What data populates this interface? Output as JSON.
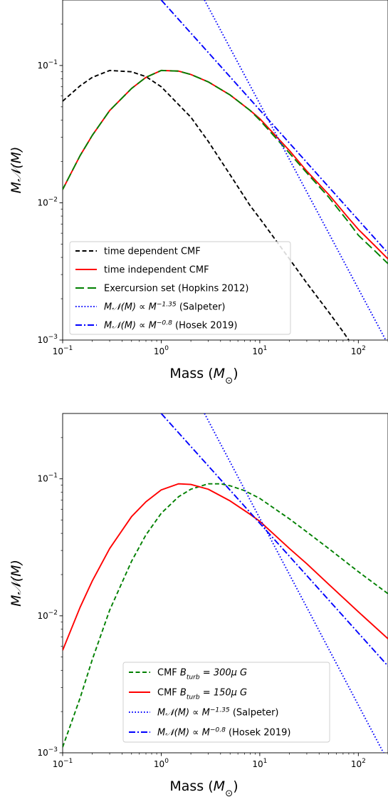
{
  "chart_data": [
    {
      "type": "line",
      "xlabel": "Mass ($M_\\odot$)",
      "ylabel": "$M\\mathcal{N}(M)$",
      "x_scale": "log",
      "y_scale": "log",
      "xlim": [
        0.1,
        200
      ],
      "ylim": [
        0.001,
        0.3
      ],
      "x_ticks": [
        {
          "value": 0.1,
          "mant": "10",
          "exp": "−1"
        },
        {
          "value": 1,
          "mant": "10",
          "exp": "0"
        },
        {
          "value": 10,
          "mant": "10",
          "exp": "1"
        },
        {
          "value": 100,
          "mant": "10",
          "exp": "2"
        }
      ],
      "y_ticks": [
        {
          "value": 0.001,
          "mant": "10",
          "exp": "−3"
        },
        {
          "value": 0.01,
          "mant": "10",
          "exp": "−2"
        },
        {
          "value": 0.1,
          "mant": "10",
          "exp": "−1"
        }
      ],
      "legend_position": "lower-left",
      "series": [
        {
          "name": "time dependent CMF",
          "style": "dashed",
          "color": "#000000",
          "x": [
            0.1,
            0.15,
            0.2,
            0.3,
            0.5,
            0.7,
            1,
            2,
            3,
            5,
            8,
            10,
            20,
            30,
            50,
            70,
            80
          ],
          "y": [
            0.055,
            0.071,
            0.082,
            0.092,
            0.09,
            0.083,
            0.07,
            0.042,
            0.028,
            0.016,
            0.0095,
            0.0077,
            0.0039,
            0.0026,
            0.0016,
            0.00115,
            0.001
          ]
        },
        {
          "name": "time independent CMF",
          "style": "solid",
          "color": "#ff0000",
          "x": [
            0.1,
            0.15,
            0.2,
            0.3,
            0.5,
            0.7,
            1,
            1.5,
            2,
            3,
            5,
            8,
            10,
            20,
            30,
            50,
            80,
            100,
            150,
            200
          ],
          "y": [
            0.0125,
            0.022,
            0.031,
            0.047,
            0.068,
            0.082,
            0.092,
            0.091,
            0.086,
            0.076,
            0.061,
            0.047,
            0.041,
            0.024,
            0.017,
            0.0115,
            0.0077,
            0.0064,
            0.0048,
            0.0039
          ]
        },
        {
          "name": "Exercursion set (Hopkins 2012)",
          "style": "longdash",
          "color": "#008000",
          "x": [
            0.1,
            0.15,
            0.2,
            0.3,
            0.5,
            0.7,
            1,
            1.5,
            2,
            3,
            5,
            8,
            10,
            20,
            30,
            50,
            80,
            100,
            150,
            200
          ],
          "y": [
            0.0125,
            0.022,
            0.031,
            0.047,
            0.068,
            0.082,
            0.092,
            0.091,
            0.086,
            0.076,
            0.061,
            0.047,
            0.04,
            0.023,
            0.0165,
            0.011,
            0.0072,
            0.0058,
            0.0044,
            0.0036
          ]
        },
        {
          "name": "$M\\mathcal{N}(M) \\propto M^{-1.35}$ (Salpeter)",
          "style": "dotted",
          "color": "#0000ff",
          "x": [
            2.75,
            200
          ],
          "y": [
            0.3,
            0.00093
          ]
        },
        {
          "name": "$M\\mathcal{N}(M) \\propto M^{-0.8}$ (Hosek 2019)",
          "style": "dashdot",
          "color": "#0000ff",
          "x": [
            1.0,
            200
          ],
          "y": [
            0.3,
            0.0043
          ]
        }
      ]
    },
    {
      "type": "line",
      "xlabel": "Mass ($M_\\odot$)",
      "ylabel": "$M\\mathcal{N}(M)$",
      "x_scale": "log",
      "y_scale": "log",
      "xlim": [
        0.1,
        200
      ],
      "ylim": [
        0.001,
        0.3
      ],
      "x_ticks": [
        {
          "value": 0.1,
          "mant": "10",
          "exp": "−1"
        },
        {
          "value": 1,
          "mant": "10",
          "exp": "0"
        },
        {
          "value": 10,
          "mant": "10",
          "exp": "1"
        },
        {
          "value": 100,
          "mant": "10",
          "exp": "2"
        }
      ],
      "y_ticks": [
        {
          "value": 0.001,
          "mant": "10",
          "exp": "−3"
        },
        {
          "value": 0.01,
          "mant": "10",
          "exp": "−2"
        },
        {
          "value": 0.1,
          "mant": "10",
          "exp": "−1"
        }
      ],
      "legend_position": "lower-center",
      "series": [
        {
          "name": "CMF $B_{turb} = 300\\mu G$",
          "style": "dashed",
          "color": "#008000",
          "x": [
            0.1,
            0.15,
            0.2,
            0.3,
            0.5,
            0.7,
            1,
            1.5,
            2,
            3,
            4,
            5,
            7,
            10,
            20,
            30,
            50,
            100,
            200
          ],
          "y": [
            0.0011,
            0.0025,
            0.0048,
            0.011,
            0.025,
            0.039,
            0.056,
            0.074,
            0.084,
            0.092,
            0.092,
            0.089,
            0.082,
            0.072,
            0.051,
            0.041,
            0.031,
            0.021,
            0.0145
          ]
        },
        {
          "name": "CMF $B_{turb} = 150\\mu G$",
          "style": "solid",
          "color": "#ff0000",
          "x": [
            0.1,
            0.15,
            0.2,
            0.3,
            0.5,
            0.7,
            1,
            1.5,
            2,
            3,
            5,
            8,
            10,
            20,
            30,
            50,
            100,
            200
          ],
          "y": [
            0.0056,
            0.0115,
            0.018,
            0.031,
            0.053,
            0.068,
            0.083,
            0.092,
            0.091,
            0.084,
            0.069,
            0.055,
            0.049,
            0.031,
            0.024,
            0.017,
            0.0107,
            0.0068
          ]
        },
        {
          "name": "$M\\mathcal{N}(M) \\propto M^{-1.35}$ (Salpeter)",
          "style": "dotted",
          "color": "#0000ff",
          "x": [
            2.75,
            180
          ],
          "y": [
            0.3,
            0.001
          ]
        },
        {
          "name": "$M\\mathcal{N}(M) \\propto M^{-0.8}$ (Hosek 2019)",
          "style": "dashdot",
          "color": "#0000ff",
          "x": [
            1.0,
            200
          ],
          "y": [
            0.3,
            0.0043
          ]
        }
      ]
    }
  ]
}
